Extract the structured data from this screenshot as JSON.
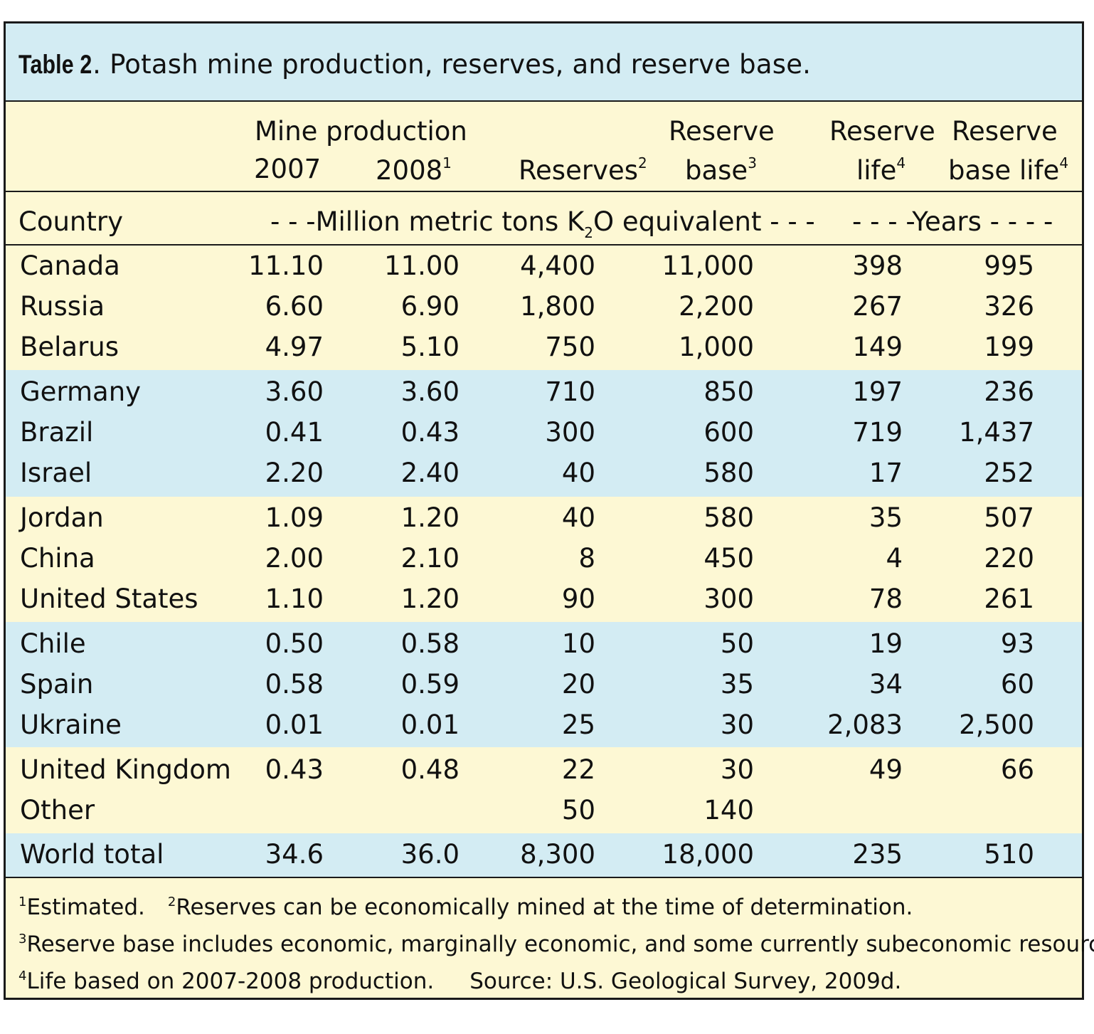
{
  "title": {
    "label": "Table 2",
    "text": ".  Potash mine production, reserves, and reserve base."
  },
  "header": {
    "mine_production": "Mine production",
    "y2007": "2007",
    "y2008": "2008",
    "y2008_note": "1",
    "reserves": "Reserves",
    "reserves_note": "2",
    "reserve_base_1": "Reserve",
    "reserve_base_2": "base",
    "reserve_base_note": "3",
    "reserve_life_1": "Reserve",
    "reserve_life_2": "life",
    "reserve_life_note": "4",
    "reserve_base_life_1": "Reserve",
    "reserve_base_life_2": "base life",
    "reserve_base_life_note": "4"
  },
  "units": {
    "country": "Country",
    "million_pre": "- - -Million metric tons K",
    "million_sub": "2",
    "million_post": "O equivalent - - -",
    "years": "- - - -Years - - - -"
  },
  "rows": [
    {
      "country": "Canada",
      "p2007": "11.10",
      "p2008": "11.00",
      "reserves": "4,400",
      "base": "11,000",
      "life": "398",
      "base_life": "995"
    },
    {
      "country": "Russia",
      "p2007": "6.60",
      "p2008": "6.90",
      "reserves": "1,800",
      "base": "2,200",
      "life": "267",
      "base_life": "326"
    },
    {
      "country": "Belarus",
      "p2007": "4.97",
      "p2008": "5.10",
      "reserves": "750",
      "base": "1,000",
      "life": "149",
      "base_life": "199"
    },
    {
      "country": "Germany",
      "p2007": "3.60",
      "p2008": "3.60",
      "reserves": "710",
      "base": "850",
      "life": "197",
      "base_life": "236"
    },
    {
      "country": "Brazil",
      "p2007": "0.41",
      "p2008": "0.43",
      "reserves": "300",
      "base": "600",
      "life": "719",
      "base_life": "1,437"
    },
    {
      "country": "Israel",
      "p2007": "2.20",
      "p2008": "2.40",
      "reserves": "40",
      "base": "580",
      "life": "17",
      "base_life": "252"
    },
    {
      "country": "Jordan",
      "p2007": "1.09",
      "p2008": "1.20",
      "reserves": "40",
      "base": "580",
      "life": "35",
      "base_life": "507"
    },
    {
      "country": "China",
      "p2007": "2.00",
      "p2008": "2.10",
      "reserves": "8",
      "base": "450",
      "life": "4",
      "base_life": "220"
    },
    {
      "country": "United States",
      "p2007": "1.10",
      "p2008": "1.20",
      "reserves": "90",
      "base": "300",
      "life": "78",
      "base_life": "261"
    },
    {
      "country": "Chile",
      "p2007": "0.50",
      "p2008": "0.58",
      "reserves": "10",
      "base": "50",
      "life": "19",
      "base_life": "93"
    },
    {
      "country": "Spain",
      "p2007": "0.58",
      "p2008": "0.59",
      "reserves": "20",
      "base": "35",
      "life": "34",
      "base_life": "60"
    },
    {
      "country": "Ukraine",
      "p2007": "0.01",
      "p2008": "0.01",
      "reserves": "25",
      "base": "30",
      "life": "2,083",
      "base_life": "2,500"
    },
    {
      "country": "United Kingdom",
      "p2007": "0.43",
      "p2008": "0.48",
      "reserves": "22",
      "base": "30",
      "life": "49",
      "base_life": "66"
    },
    {
      "country": "Other",
      "p2007": "",
      "p2008": "",
      "reserves": "50",
      "base": "140",
      "life": "",
      "base_life": ""
    }
  ],
  "total": {
    "country": "World total",
    "p2007": "34.6",
    "p2008": "36.0",
    "reserves": "8,300",
    "base": "18,000",
    "life": "235",
    "base_life": "510"
  },
  "footnotes": {
    "n1_mark": "1",
    "n1": "Estimated.",
    "n2_mark": "2",
    "n2": "Reserves can be economically mined at the time of determination.",
    "n3_mark": "3",
    "n3": "Reserve base includes economic, marginally economic, and some currently subeconomic resources.",
    "n4_mark": "4",
    "n4": "Life based on 2007-2008 production.",
    "source": "Source: U.S. Geological Survey, 2009d."
  },
  "colors": {
    "blue_band": "#d3ecf3",
    "yellow_band": "#fdf8d4",
    "rule": "#1a1a1a"
  }
}
